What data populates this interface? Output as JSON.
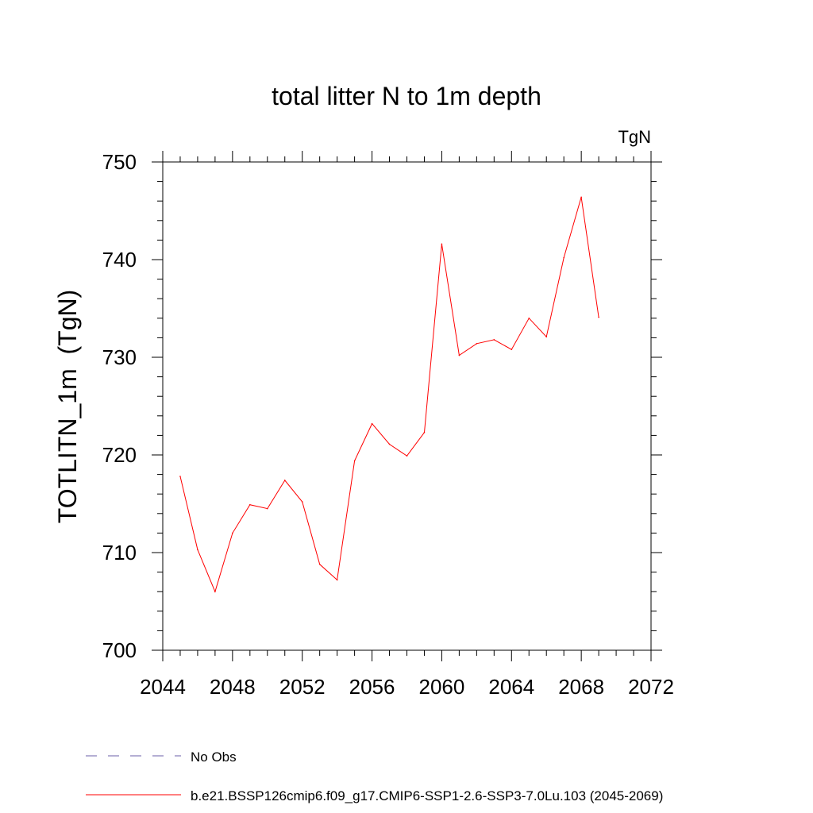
{
  "chart_data": {
    "type": "line",
    "title": "total litter N to 1m depth",
    "units": "TgN",
    "ylabel": "TOTLITN_1m  (TgN)",
    "xlabel": "",
    "xlim": [
      2044,
      2072
    ],
    "ylim": [
      700,
      750
    ],
    "xticks": [
      2044,
      2048,
      2052,
      2056,
      2060,
      2064,
      2068,
      2072
    ],
    "yticks": [
      700,
      710,
      720,
      730,
      740,
      750
    ],
    "grid": false,
    "legend_placement": "bottom",
    "series": [
      {
        "name": "b.e21.BSSP126cmip6.f09_g17.CMIP6-SSP1-2.6-SSP3-7.0Lu.103 (2045-2069)",
        "color": "#ff0000",
        "style": "solid",
        "x": [
          2045,
          2046,
          2047,
          2048,
          2049,
          2050,
          2051,
          2052,
          2053,
          2054,
          2055,
          2056,
          2057,
          2058,
          2059,
          2060,
          2061,
          2062,
          2063,
          2064,
          2065,
          2066,
          2067,
          2068,
          2069
        ],
        "y": [
          717.8,
          710.3,
          706.0,
          712.0,
          714.9,
          714.5,
          717.4,
          715.2,
          708.8,
          707.2,
          719.4,
          723.2,
          721.1,
          719.9,
          722.3,
          741.6,
          730.2,
          731.4,
          731.8,
          730.8,
          734.0,
          732.1,
          740.2,
          746.4,
          734.1
        ]
      }
    ],
    "legend": [
      {
        "label": "No Obs",
        "color": "#6b5fa8",
        "style": "dashed"
      },
      {
        "label": "b.e21.BSSP126cmip6.f09_g17.CMIP6-SSP1-2.6-SSP3-7.0Lu.103 (2045-2069)",
        "color": "#ff0000",
        "style": "solid"
      }
    ]
  }
}
